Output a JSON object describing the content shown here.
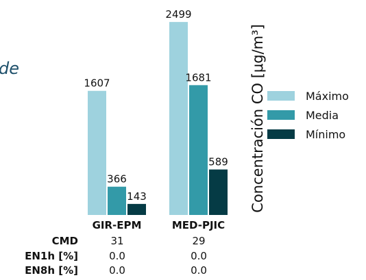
{
  "partial_text": "de",
  "colors": {
    "maximo": "#9ed2de",
    "media": "#339aa8",
    "minimo": "#053b45"
  },
  "chart_data": {
    "type": "bar",
    "categories": [
      "GIR-EPM",
      "MED-PJIC"
    ],
    "series": [
      {
        "name": "Máximo",
        "values": [
          1607,
          2499
        ]
      },
      {
        "name": "Media",
        "values": [
          366,
          1681
        ]
      },
      {
        "name": "Mínimo",
        "values": [
          143,
          589
        ]
      }
    ],
    "ylabel": "Concentración CO [μg/m³]",
    "ylim": [
      0,
      2500
    ],
    "grid": false,
    "legend_position": "right"
  },
  "stats_table": {
    "rows": [
      {
        "label": "CMD",
        "values": [
          "31",
          "29"
        ]
      },
      {
        "label": "EN1h [%]",
        "values": [
          "0.0",
          "0.0"
        ]
      },
      {
        "label": "EN8h [%]",
        "values": [
          "0.0",
          "0.0"
        ]
      }
    ]
  }
}
